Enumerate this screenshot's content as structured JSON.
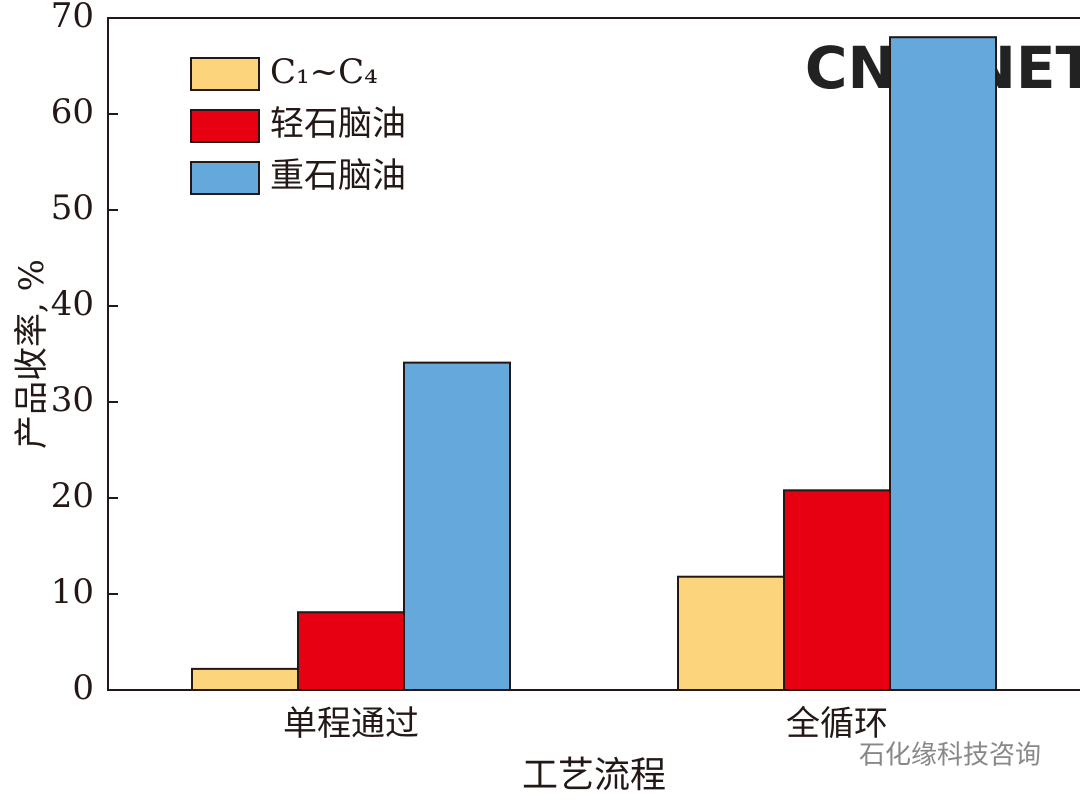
{
  "chart_data": {
    "type": "bar",
    "categories": [
      "单程通过",
      "全循环"
    ],
    "series": [
      {
        "name": "C₁~C₄",
        "color": "#fbd47c",
        "values": [
          2.2,
          11.8
        ]
      },
      {
        "name": "轻石脑油",
        "color": "#e60012",
        "values": [
          8.1,
          20.8
        ]
      },
      {
        "name": "重石脑油",
        "color": "#65a8dc",
        "values": [
          34.1,
          68
        ]
      }
    ],
    "x_label": "工艺流程",
    "y_label": "产品收率, %",
    "ylim": [
      0,
      70
    ],
    "yticks": [
      0,
      10,
      20,
      30,
      40,
      50,
      60,
      70
    ],
    "legend": "upper left",
    "watermark": "CNQ.NET",
    "source": "石化缘科技咨询"
  }
}
